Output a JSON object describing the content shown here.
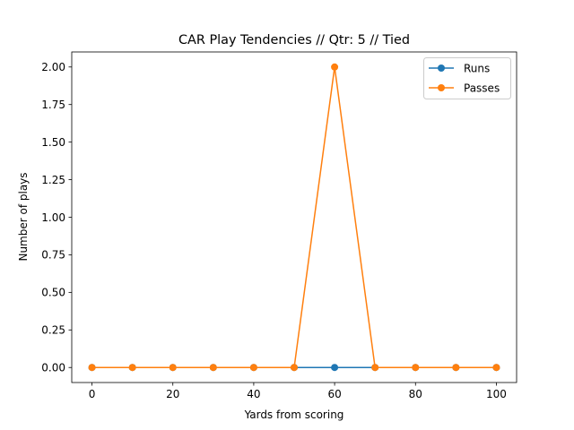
{
  "chart_data": {
    "type": "line",
    "title": "CAR Play Tendencies // Qtr: 5 // Tied",
    "xlabel": "Yards from scoring",
    "ylabel": "Number of plays",
    "x": [
      0,
      10,
      20,
      30,
      40,
      50,
      60,
      70,
      80,
      90,
      100
    ],
    "xlim": [
      -5,
      105
    ],
    "ylim": [
      -0.1,
      2.1
    ],
    "x_ticks": [
      0,
      20,
      40,
      60,
      80,
      100
    ],
    "x_tick_labels": [
      "0",
      "20",
      "40",
      "60",
      "80",
      "100"
    ],
    "y_ticks": [
      0,
      0.25,
      0.5,
      0.75,
      1.0,
      1.25,
      1.5,
      1.75,
      2.0
    ],
    "y_tick_labels": [
      "0.00",
      "0.25",
      "0.50",
      "0.75",
      "1.00",
      "1.25",
      "1.50",
      "1.75",
      "2.00"
    ],
    "series": [
      {
        "name": "Runs",
        "color": "#1f77b4",
        "marker": "circle",
        "values": [
          0,
          0,
          0,
          0,
          0,
          0,
          0,
          0,
          0,
          0,
          0
        ]
      },
      {
        "name": "Passes",
        "color": "#ff7f0e",
        "marker": "circle",
        "values": [
          0,
          0,
          0,
          0,
          0,
          0,
          2,
          0,
          0,
          0,
          0
        ]
      }
    ],
    "grid": false,
    "legend": "upper right"
  }
}
